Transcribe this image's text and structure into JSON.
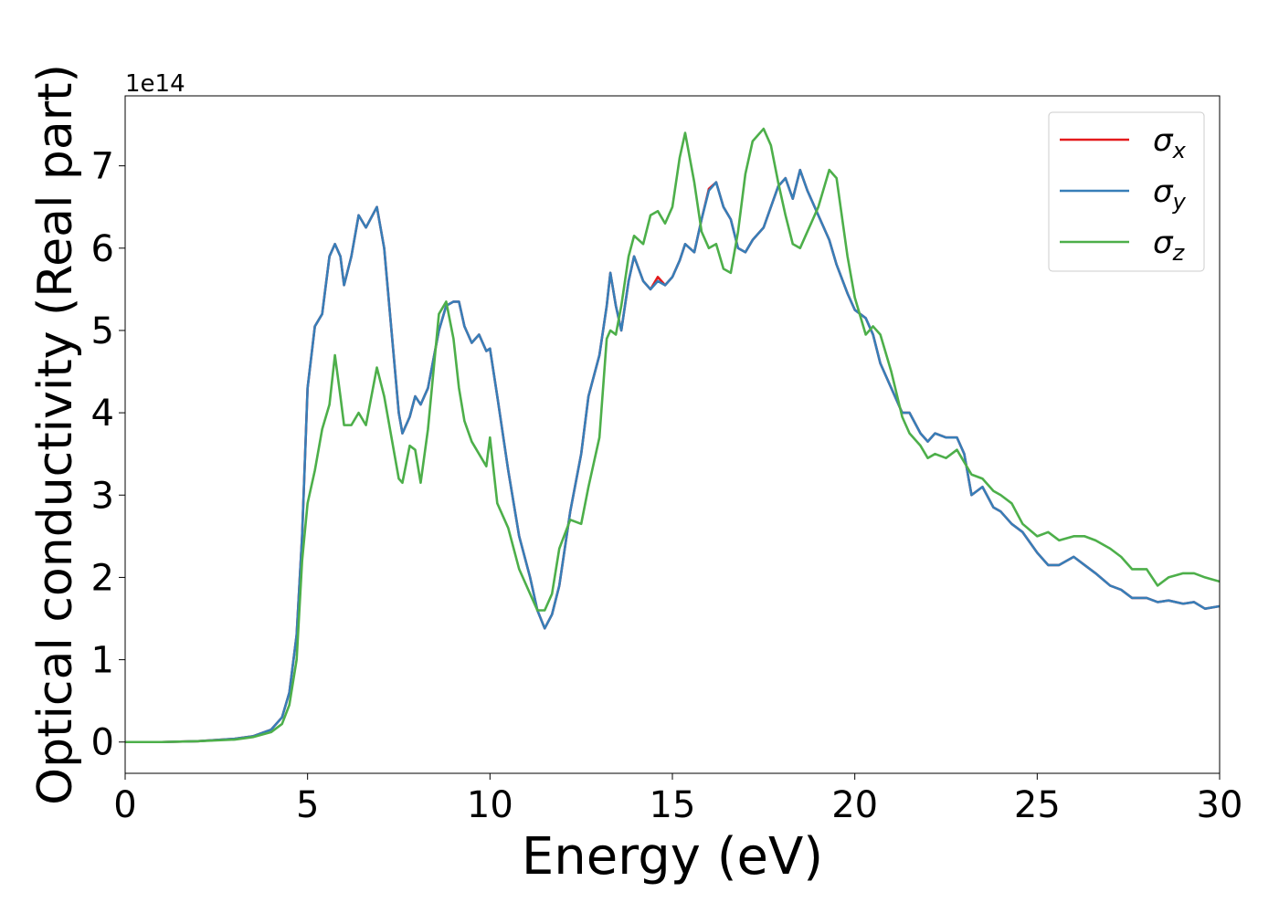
{
  "chart_data": {
    "type": "line",
    "xlabel": "Energy (eV)",
    "ylabel": "Optical conductivity (Real part)",
    "y_offset_label": "1e14",
    "xlim": [
      0,
      30
    ],
    "ylim": [
      -0.38,
      7.85
    ],
    "xticks": [
      0,
      5,
      10,
      15,
      20,
      25,
      30
    ],
    "yticks": [
      0,
      1,
      2,
      3,
      4,
      5,
      6,
      7
    ],
    "legend": "upper right",
    "x": [
      0,
      1,
      2,
      3,
      3.5,
      4,
      4.3,
      4.5,
      4.7,
      4.85,
      5,
      5.2,
      5.4,
      5.6,
      5.75,
      5.9,
      6,
      6.2,
      6.4,
      6.6,
      6.9,
      7.1,
      7.3,
      7.5,
      7.6,
      7.8,
      7.95,
      8.1,
      8.3,
      8.6,
      8.8,
      9,
      9.15,
      9.3,
      9.5,
      9.7,
      9.9,
      10,
      10.2,
      10.5,
      10.8,
      11.1,
      11.3,
      11.5,
      11.7,
      11.9,
      12.2,
      12.5,
      12.7,
      13,
      13.2,
      13.3,
      13.45,
      13.6,
      13.8,
      13.95,
      14.2,
      14.4,
      14.6,
      14.8,
      15,
      15.2,
      15.35,
      15.6,
      15.8,
      16,
      16.2,
      16.4,
      16.6,
      16.8,
      17,
      17.2,
      17.5,
      17.7,
      17.9,
      18.1,
      18.3,
      18.5,
      18.7,
      19,
      19.3,
      19.5,
      19.8,
      20,
      20.3,
      20.5,
      20.7,
      21,
      21.3,
      21.5,
      21.8,
      22,
      22.2,
      22.5,
      22.8,
      23,
      23.2,
      23.5,
      23.8,
      24,
      24.3,
      24.6,
      25,
      25.3,
      25.6,
      26,
      26.3,
      26.6,
      27,
      27.3,
      27.6,
      28,
      28.3,
      28.6,
      29,
      29.3,
      29.6,
      30
    ],
    "series": [
      {
        "name": "σx",
        "color": "#e41a1c",
        "values": [
          0,
          0,
          0.01,
          0.04,
          0.07,
          0.15,
          0.3,
          0.6,
          1.3,
          2.5,
          4.3,
          5.05,
          5.2,
          5.9,
          6.05,
          5.9,
          5.55,
          5.9,
          6.4,
          6.25,
          6.5,
          6.0,
          5.0,
          4.0,
          3.75,
          3.95,
          4.2,
          4.1,
          4.3,
          5.0,
          5.3,
          5.35,
          5.35,
          5.05,
          4.85,
          4.95,
          4.75,
          4.78,
          4.2,
          3.3,
          2.5,
          2.0,
          1.6,
          1.38,
          1.55,
          1.9,
          2.8,
          3.5,
          4.2,
          4.7,
          5.3,
          5.7,
          5.3,
          5.0,
          5.6,
          5.9,
          5.6,
          5.5,
          5.65,
          5.55,
          5.65,
          5.85,
          6.05,
          5.95,
          6.35,
          6.72,
          6.8,
          6.5,
          6.35,
          6.0,
          5.95,
          6.1,
          6.25,
          6.5,
          6.75,
          6.85,
          6.6,
          6.95,
          6.7,
          6.4,
          6.1,
          5.8,
          5.45,
          5.25,
          5.15,
          4.95,
          4.6,
          4.3,
          4.0,
          4.0,
          3.75,
          3.65,
          3.75,
          3.7,
          3.7,
          3.5,
          3.0,
          3.1,
          2.85,
          2.8,
          2.65,
          2.55,
          2.3,
          2.15,
          2.15,
          2.25,
          2.15,
          2.05,
          1.9,
          1.85,
          1.75,
          1.75,
          1.7,
          1.72,
          1.68,
          1.7,
          1.62,
          1.65
        ]
      },
      {
        "name": "σy",
        "color": "#377eb8",
        "values": [
          0,
          0,
          0.01,
          0.04,
          0.07,
          0.15,
          0.3,
          0.6,
          1.3,
          2.5,
          4.3,
          5.05,
          5.2,
          5.9,
          6.05,
          5.9,
          5.55,
          5.9,
          6.4,
          6.25,
          6.5,
          6.0,
          5.0,
          4.0,
          3.75,
          3.95,
          4.2,
          4.1,
          4.3,
          5.0,
          5.3,
          5.35,
          5.35,
          5.05,
          4.85,
          4.95,
          4.75,
          4.78,
          4.2,
          3.3,
          2.5,
          2.0,
          1.6,
          1.38,
          1.55,
          1.9,
          2.8,
          3.5,
          4.2,
          4.7,
          5.3,
          5.7,
          5.3,
          5.0,
          5.6,
          5.9,
          5.6,
          5.5,
          5.6,
          5.55,
          5.65,
          5.85,
          6.05,
          5.95,
          6.35,
          6.7,
          6.8,
          6.5,
          6.35,
          6.0,
          5.95,
          6.1,
          6.25,
          6.5,
          6.75,
          6.85,
          6.6,
          6.95,
          6.7,
          6.4,
          6.1,
          5.8,
          5.45,
          5.25,
          5.15,
          4.95,
          4.6,
          4.3,
          4.0,
          4.0,
          3.75,
          3.65,
          3.75,
          3.7,
          3.7,
          3.5,
          3.0,
          3.1,
          2.85,
          2.8,
          2.65,
          2.55,
          2.3,
          2.15,
          2.15,
          2.25,
          2.15,
          2.05,
          1.9,
          1.85,
          1.75,
          1.75,
          1.7,
          1.72,
          1.68,
          1.7,
          1.62,
          1.65
        ]
      },
      {
        "name": "σz",
        "color": "#4daf4a",
        "values": [
          0,
          0,
          0.01,
          0.03,
          0.06,
          0.12,
          0.22,
          0.45,
          1.0,
          2.2,
          2.9,
          3.3,
          3.8,
          4.1,
          4.7,
          4.2,
          3.85,
          3.85,
          4.0,
          3.85,
          4.55,
          4.2,
          3.7,
          3.2,
          3.15,
          3.6,
          3.55,
          3.15,
          3.8,
          5.2,
          5.35,
          4.9,
          4.3,
          3.9,
          3.65,
          3.5,
          3.35,
          3.7,
          2.9,
          2.6,
          2.1,
          1.8,
          1.6,
          1.6,
          1.8,
          2.35,
          2.7,
          2.65,
          3.1,
          3.7,
          4.9,
          5.0,
          4.95,
          5.3,
          5.9,
          6.15,
          6.05,
          6.4,
          6.45,
          6.3,
          6.5,
          7.1,
          7.4,
          6.8,
          6.2,
          6.0,
          6.05,
          5.75,
          5.7,
          6.2,
          6.9,
          7.3,
          7.45,
          7.25,
          6.8,
          6.4,
          6.05,
          6.0,
          6.2,
          6.5,
          6.95,
          6.85,
          5.9,
          5.4,
          4.95,
          5.05,
          4.95,
          4.5,
          3.95,
          3.75,
          3.6,
          3.45,
          3.5,
          3.45,
          3.55,
          3.4,
          3.25,
          3.2,
          3.05,
          3.0,
          2.9,
          2.65,
          2.5,
          2.55,
          2.45,
          2.5,
          2.5,
          2.45,
          2.35,
          2.25,
          2.1,
          2.1,
          1.9,
          2.0,
          2.05,
          2.05,
          2.0,
          1.95
        ]
      }
    ]
  }
}
